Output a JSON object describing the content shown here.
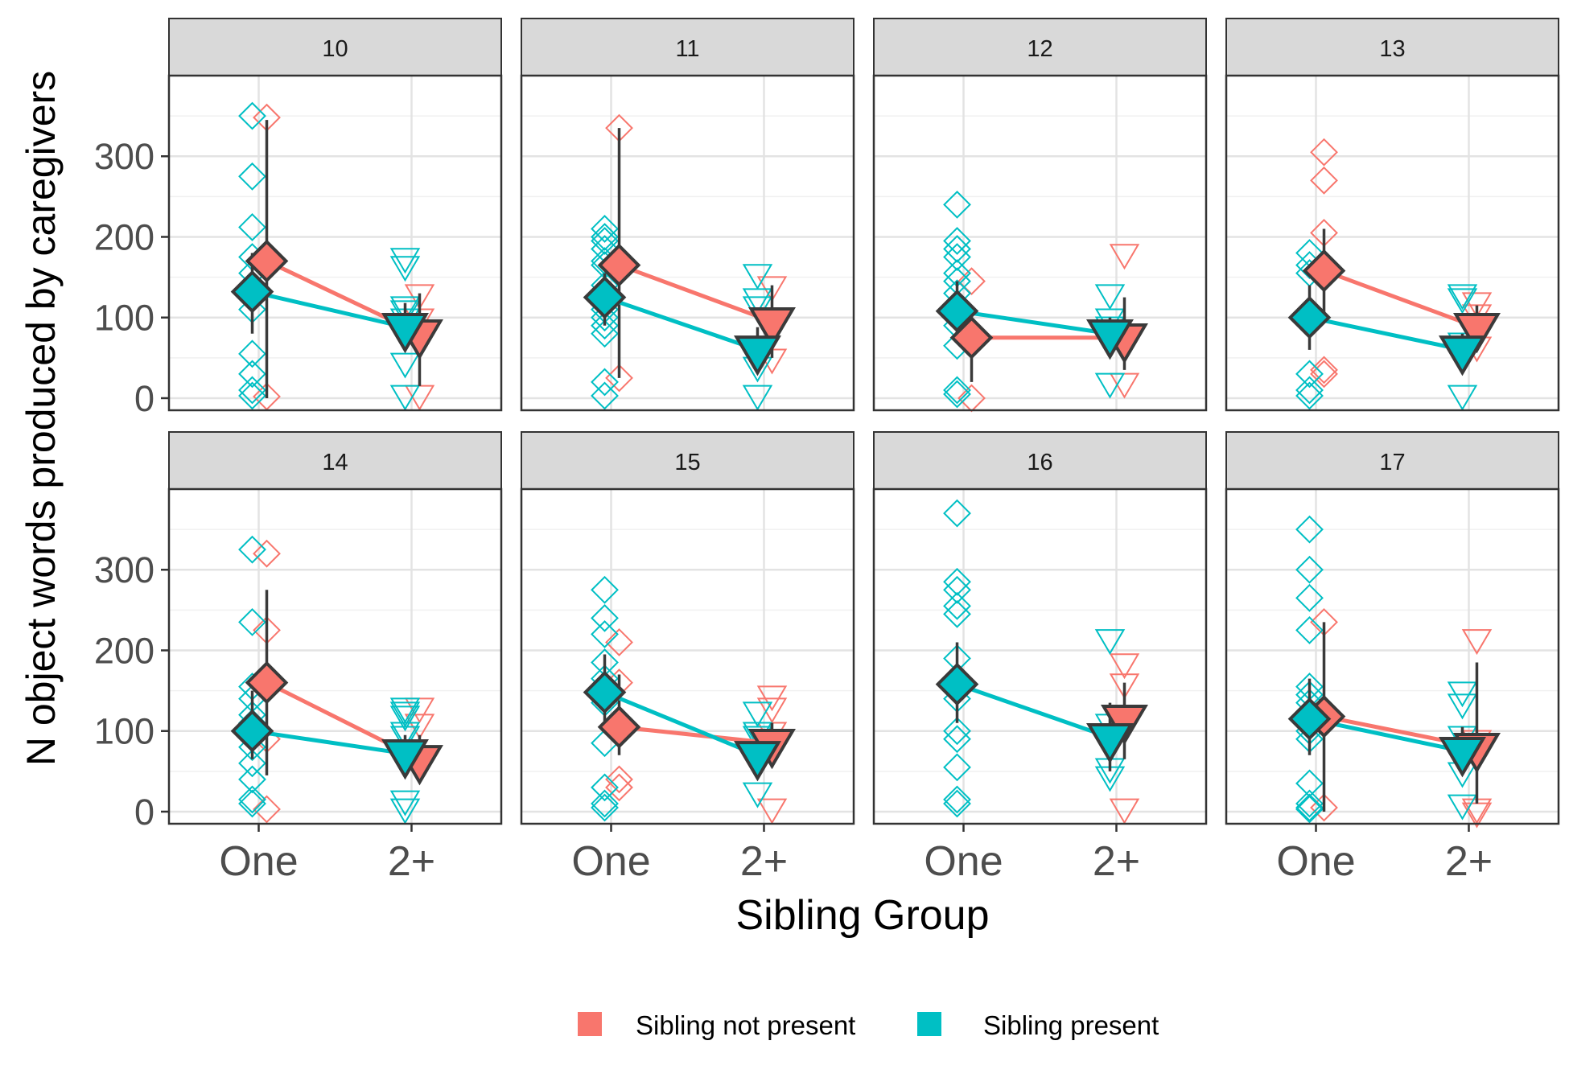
{
  "chart_data": {
    "type": "scatter",
    "xlabel": "Sibling Group",
    "ylabel": "N object words produced by caregivers",
    "categories": [
      "One",
      "2+"
    ],
    "yticks": [
      0,
      100,
      200,
      300
    ],
    "ylim": [
      -15,
      400
    ],
    "grid": true,
    "legend_position": "bottom",
    "legend": [
      {
        "name": "Sibling not present",
        "color": "#F8766D"
      },
      {
        "name": "Sibling present",
        "color": "#00BFC4"
      }
    ],
    "facets": [
      {
        "label": "10",
        "raw": {
          "not_present": {
            "One": [
              348,
              2
            ],
            "2+": [
              130,
              100,
              5
            ]
          },
          "present": {
            "One": [
              350,
              275,
              212,
              175,
              155,
              110,
              55,
              30,
              10,
              3
            ],
            "2+": [
              175,
              165,
              115,
              110,
              100,
              45,
              5
            ]
          }
        },
        "means": {
          "not_present": [
            170,
            80
          ],
          "present": [
            132,
            88
          ]
        },
        "errorbars": {
          "not_present": [
            [
              0,
              345
            ],
            [
              15,
              130
            ]
          ],
          "present": [
            [
              80,
              180
            ],
            [
              60,
              118
            ]
          ]
        }
      },
      {
        "label": "11",
        "raw": {
          "not_present": {
            "One": [
              335,
              25
            ],
            "2+": [
              140,
              50
            ]
          },
          "present": {
            "One": [
              210,
              200,
              195,
              185,
              170,
              165,
              140,
              110,
              100,
              90,
              80,
              20,
              3
            ],
            "2+": [
              155,
              125,
              115,
              40,
              5
            ]
          }
        },
        "means": {
          "not_present": [
            165,
            95
          ],
          "present": [
            125,
            60
          ]
        },
        "errorbars": {
          "not_present": [
            [
              25,
              335
            ],
            [
              50,
              140
            ]
          ],
          "present": [
            [
              90,
              155
            ],
            [
              35,
              88
            ]
          ]
        }
      },
      {
        "label": "12",
        "raw": {
          "not_present": {
            "One": [
              145,
              0
            ],
            "2+": [
              180,
              20
            ]
          },
          "present": {
            "One": [
              240,
              195,
              185,
              175,
              155,
              145,
              130,
              105,
              90,
              65,
              10,
              5
            ],
            "2+": [
              130,
              100,
              90,
              20
            ]
          }
        },
        "means": {
          "not_present": [
            75,
            75
          ],
          "present": [
            108,
            80
          ]
        },
        "errorbars": {
          "not_present": [
            [
              20,
              110
            ],
            [
              35,
              125
            ]
          ],
          "present": [
            [
              80,
              145
            ],
            [
              55,
              100
            ]
          ]
        }
      },
      {
        "label": "13",
        "raw": {
          "not_present": {
            "One": [
              305,
              270,
              205,
              35,
              30
            ],
            "2+": [
              120,
              105,
              65
            ]
          },
          "present": {
            "One": [
              180,
              165,
              155,
              30,
              10,
              3
            ],
            "2+": [
              130,
              125,
              70,
              5
            ]
          }
        },
        "means": {
          "not_present": [
            158,
            88
          ],
          "present": [
            100,
            60
          ]
        },
        "errorbars": {
          "not_present": [
            [
              100,
              210
            ],
            [
              70,
              115
            ]
          ],
          "present": [
            [
              60,
              140
            ],
            [
              45,
              80
            ]
          ]
        }
      },
      {
        "label": "14",
        "raw": {
          "not_present": {
            "One": [
              320,
              225,
              90,
              3
            ],
            "2+": [
              130,
              110,
              60
            ]
          },
          "present": {
            "One": [
              325,
              235,
              155,
              140,
              120,
              110,
              95,
              80,
              60,
              40,
              15,
              10
            ],
            "2+": [
              130,
              125,
              120,
              100,
              95,
              75,
              15,
              5
            ]
          }
        },
        "means": {
          "not_present": [
            160,
            65
          ],
          "present": [
            100,
            72
          ]
        },
        "errorbars": {
          "not_present": [
            [
              45,
              275
            ],
            [
              50,
              95
            ]
          ],
          "present": [
            [
              65,
              150
            ],
            [
              55,
              95
            ]
          ]
        }
      },
      {
        "label": "15",
        "raw": {
          "not_present": {
            "One": [
              210,
              160,
              40,
              30
            ],
            "2+": [
              145,
              130,
              100,
              5
            ]
          },
          "present": {
            "One": [
              275,
              240,
              220,
              185,
              165,
              135,
              85,
              30,
              10,
              5
            ],
            "2+": [
              125,
              100,
              95,
              25
            ]
          }
        },
        "means": {
          "not_present": [
            105,
            85
          ],
          "present": [
            148,
            70
          ]
        },
        "errorbars": {
          "not_present": [
            [
              70,
              170
            ],
            [
              55,
              110
            ]
          ],
          "present": [
            [
              100,
              195
            ],
            [
              55,
              95
            ]
          ]
        }
      },
      {
        "label": "16",
        "raw": {
          "not_present": {
            "One": [],
            "2+": [
              185,
              160,
              5
            ]
          },
          "present": {
            "One": [
              370,
              285,
              275,
              255,
              245,
              190,
              165,
              140,
              100,
              90,
              55,
              15,
              10
            ],
            "2+": [
              215,
              110,
              55,
              45
            ]
          }
        },
        "means": {
          "not_present": [
            null,
            115
          ],
          "present": [
            158,
            92
          ]
        },
        "errorbars": {
          "not_present": [
            null,
            [
              65,
              160
            ]
          ],
          "present": [
            [
              110,
              210
            ],
            [
              50,
              135
            ]
          ]
        }
      },
      {
        "label": "17",
        "raw": {
          "not_present": {
            "One": [
              235,
              5
            ],
            "2+": [
              215,
              90,
              5,
              0
            ]
          },
          "present": {
            "One": [
              350,
              300,
              265,
              225,
              155,
              145,
              135,
              120,
              100,
              90,
              35,
              10,
              5,
              3
            ],
            "2+": [
              150,
              135,
              95,
              50,
              10
            ]
          }
        },
        "means": {
          "not_present": [
            118,
            80
          ],
          "present": [
            115,
            75
          ]
        },
        "errorbars": {
          "not_present": [
            [
              0,
              235
            ],
            [
              10,
              185
            ]
          ],
          "present": [
            [
              70,
              165
            ],
            [
              50,
              105
            ]
          ]
        }
      }
    ]
  }
}
